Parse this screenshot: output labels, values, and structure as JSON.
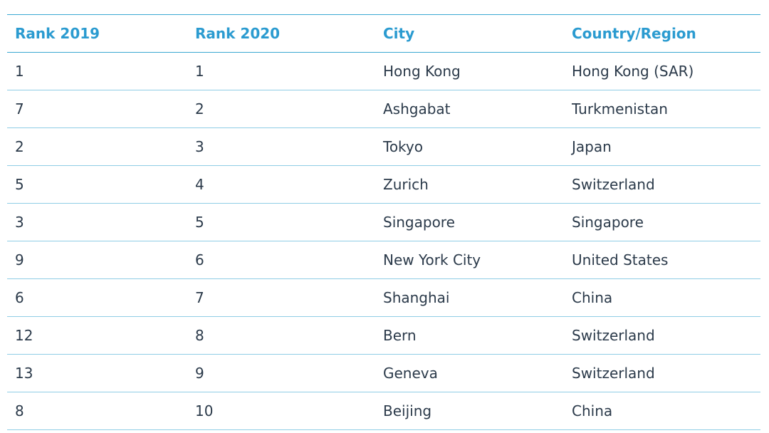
{
  "table": {
    "columns": [
      "Rank 2019",
      "Rank 2020",
      "City",
      "Country/Region"
    ],
    "rows": [
      [
        "1",
        "1",
        "Hong Kong",
        "Hong Kong (SAR)"
      ],
      [
        "7",
        "2",
        "Ashgabat",
        "Turkmenistan"
      ],
      [
        "2",
        "3",
        "Tokyo",
        "Japan"
      ],
      [
        "5",
        "4",
        "Zurich",
        "Switzerland"
      ],
      [
        "3",
        "5",
        "Singapore",
        "Singapore"
      ],
      [
        "9",
        "6",
        "New York City",
        "United States"
      ],
      [
        "6",
        "7",
        "Shanghai",
        "China"
      ],
      [
        "12",
        "8",
        "Bern",
        "Switzerland"
      ],
      [
        "13",
        "9",
        "Geneva",
        "Switzerland"
      ],
      [
        "8",
        "10",
        "Beijing",
        "China"
      ]
    ]
  },
  "colors": {
    "header_text": "#2b9bd0",
    "body_text": "#2b3a4a",
    "rule": "#3aa8d2"
  }
}
